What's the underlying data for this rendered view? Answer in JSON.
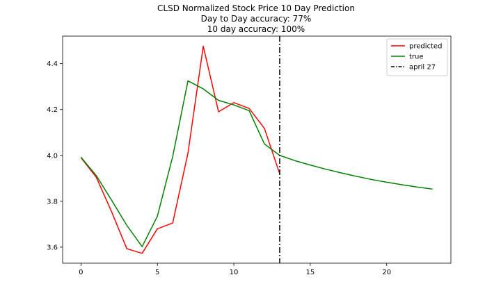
{
  "chart_data": {
    "type": "line",
    "title_lines": [
      "CLSD Normalized Stock Price 10 Day Prediction",
      "Day to Day accuracy: 77%",
      "10 day accuracy: 100%"
    ],
    "xlabel": "",
    "ylabel": "",
    "xlim": [
      -1.2,
      24.2
    ],
    "ylim": [
      3.53,
      4.52
    ],
    "xticks": [
      0,
      5,
      10,
      15,
      20
    ],
    "yticks": [
      3.6,
      3.8,
      4.0,
      4.2,
      4.4
    ],
    "xtick_labels": [
      "0",
      "5",
      "10",
      "15",
      "20"
    ],
    "ytick_labels": [
      "3.6",
      "3.8",
      "4.0",
      "4.2",
      "4.4"
    ],
    "grid": false,
    "legend_position": "top-right",
    "series": [
      {
        "name": "predicted",
        "color": "#ff0000",
        "style": "solid",
        "x": [
          0,
          1,
          2,
          3,
          4,
          5,
          6,
          7,
          8,
          9,
          10,
          11,
          12,
          13
        ],
        "values": [
          3.99,
          3.905,
          3.755,
          3.593,
          3.573,
          3.68,
          3.705,
          4.01,
          4.476,
          4.19,
          4.23,
          4.205,
          4.118,
          3.92
        ]
      },
      {
        "name": "true",
        "color": "#008000",
        "style": "solid",
        "x": [
          0,
          1,
          2,
          3,
          4,
          5,
          6,
          7,
          8,
          9,
          10,
          11,
          12,
          13,
          14,
          15,
          16,
          17,
          18,
          19,
          20,
          21,
          22,
          23
        ],
        "values": [
          3.992,
          3.912,
          3.805,
          3.695,
          3.602,
          3.735,
          3.995,
          4.325,
          4.29,
          4.24,
          4.22,
          4.195,
          4.05,
          4.0,
          3.977,
          3.958,
          3.94,
          3.924,
          3.909,
          3.895,
          3.883,
          3.872,
          3.862,
          3.853
        ]
      }
    ],
    "vline": {
      "name": "april 27",
      "x": 13,
      "color": "#000000",
      "style": "dashdot"
    }
  }
}
